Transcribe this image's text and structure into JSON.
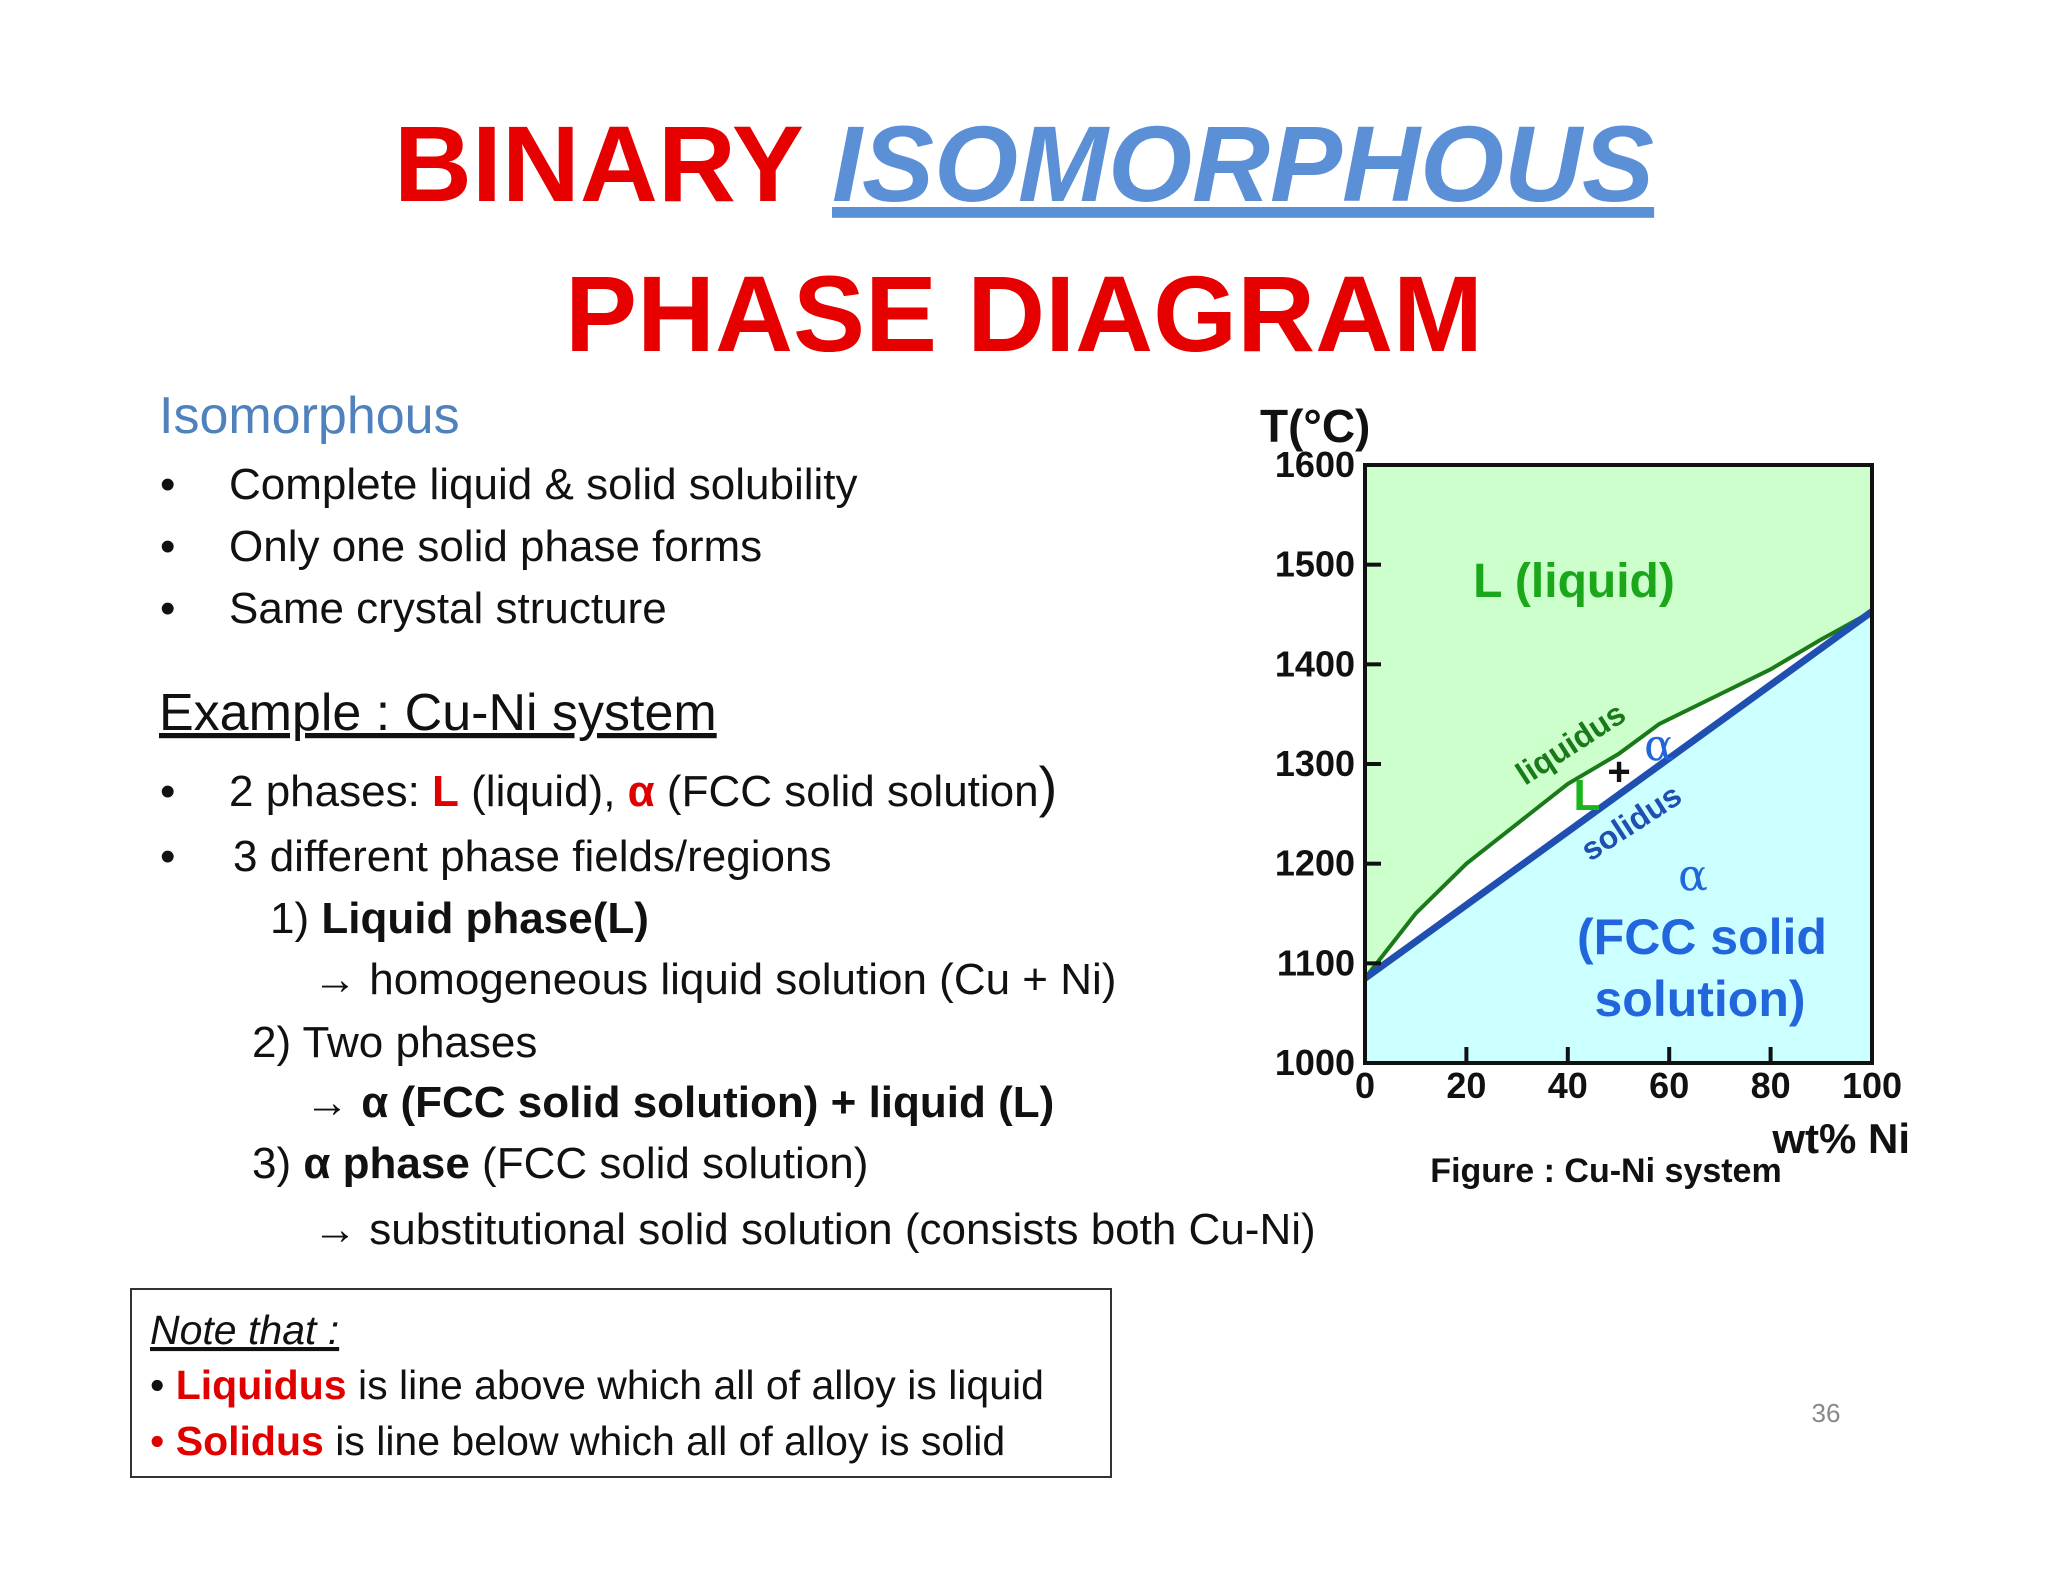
{
  "header": {
    "title_line1": [
      "BINARY ",
      "ISOMORPHOUS"
    ],
    "title_line2": "PHASE DIAGRAM"
  },
  "section1": {
    "heading": "Isomorphous",
    "bullets": [
      "Complete liquid & solid solubility",
      "Only one solid phase forms",
      "Same crystal structure"
    ]
  },
  "section2": {
    "heading": "Example : Cu-Ni system",
    "bullets": [
      [
        "2 phases: ",
        "L",
        " (liquid),  ",
        "α",
        " (FCC solid solution",
        ")"
      ],
      [
        "3 different phase fields/regions"
      ]
    ],
    "items": [
      [
        "1) ",
        "Liquid phase(L)"
      ],
      [
        "→ homogeneous liquid solution (Cu + Ni)"
      ],
      [
        "2) Two phases"
      ],
      [
        "→ α (FCC solid solution) + liquid (L)"
      ],
      [
        "3) ",
        "α phase",
        " (FCC solid solution)"
      ],
      [
        "→ substitutional solid solution (consists both Cu-Ni)"
      ]
    ]
  },
  "note": {
    "heading": "Note that :",
    "lines": [
      [
        "• ",
        "Liquidus",
        " is line above which all of alloy is liquid"
      ],
      [
        "• ",
        "Solidus",
        " is line below which all of alloy is solid"
      ]
    ]
  },
  "page_number": "36",
  "chart_data": {
    "type": "line",
    "y_label": "T(°C)",
    "x_label": "wt% Ni",
    "caption": "Figure : Cu-Ni system",
    "xlim": [
      0,
      100
    ],
    "ylim": [
      1000,
      1600
    ],
    "xticks": [
      0,
      20,
      40,
      60,
      80,
      100
    ],
    "yticks": [
      1000,
      1100,
      1200,
      1300,
      1400,
      1500,
      1600
    ],
    "series": [
      {
        "name": "liquidus",
        "color": "#1a7a1a",
        "x": [
          0,
          10,
          20,
          30,
          40,
          50,
          58,
          70,
          80,
          90,
          100
        ],
        "values": [
          1085,
          1150,
          1200,
          1240,
          1280,
          1310,
          1340,
          1370,
          1395,
          1425,
          1453
        ]
      },
      {
        "name": "solidus",
        "color": "#1f4fb0",
        "x": [
          0,
          100
        ],
        "values": [
          1085,
          1453
        ]
      }
    ],
    "region_colors": {
      "liquid": "#ccffcc",
      "two_phase": "#ffffff",
      "solid": "#ccffff"
    },
    "region_labels": [
      "L (liquid)",
      "L",
      "+",
      "α",
      "α",
      "(FCC solid",
      "solution)"
    ]
  }
}
